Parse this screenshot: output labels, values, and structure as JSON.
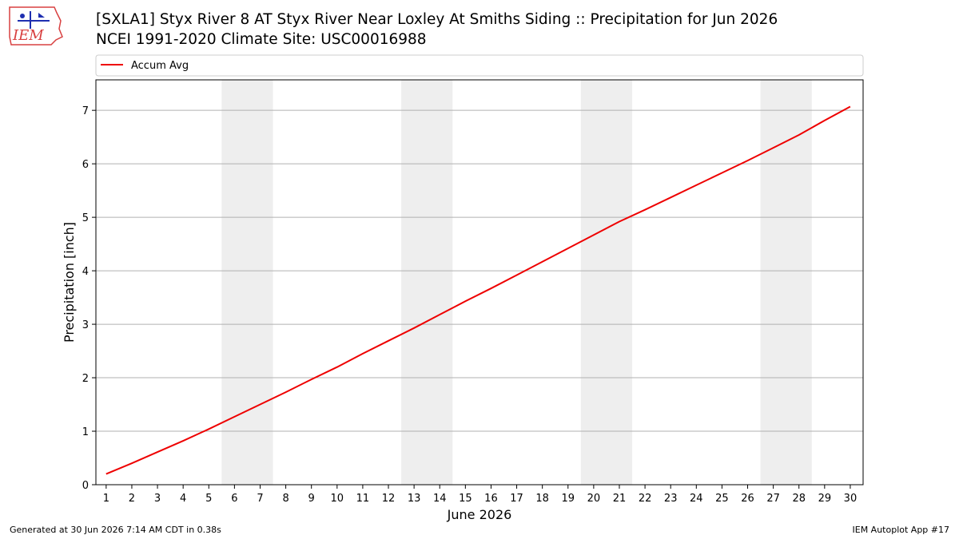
{
  "header": {
    "logo_text": "IEM",
    "title_line1": "[SXLA1] Styx River 8 AT Styx River Near Loxley  At Smiths Siding :: Precipitation for Jun 2026",
    "title_line2": "NCEI 1991-2020 Climate Site: USC00016988"
  },
  "footer": {
    "generated": "Generated at 30 Jun 2026 7:14 AM CDT in 0.38s",
    "app": "IEM Autoplot App #17"
  },
  "chart_data": {
    "type": "line",
    "title": "[SXLA1] Styx River 8 AT Styx River Near Loxley  At Smiths Siding :: Precipitation for Jun 2026",
    "subtitle": "NCEI 1991-2020 Climate Site: USC00016988",
    "xlabel": "June 2026",
    "ylabel": "Precipitation [inch]",
    "x": [
      1,
      2,
      3,
      4,
      5,
      6,
      7,
      8,
      9,
      10,
      11,
      12,
      13,
      14,
      15,
      16,
      17,
      18,
      19,
      20,
      21,
      22,
      23,
      24,
      25,
      26,
      27,
      28,
      29,
      30
    ],
    "xlim": [
      0.6,
      30.5
    ],
    "ylim": [
      0,
      7.57
    ],
    "yticks": [
      0,
      1,
      2,
      3,
      4,
      5,
      6,
      7
    ],
    "grid": "horizontal",
    "legend_position": "top",
    "weekend_shading": [
      [
        5.5,
        7.5
      ],
      [
        12.5,
        14.5
      ],
      [
        19.5,
        21.5
      ],
      [
        26.5,
        28.5
      ]
    ],
    "shade_color": "#eeeeee",
    "series": [
      {
        "name": "Accum Avg",
        "color": "#ee0000",
        "values": [
          0.2,
          0.4,
          0.61,
          0.82,
          1.04,
          1.27,
          1.5,
          1.73,
          1.97,
          2.2,
          2.45,
          2.69,
          2.93,
          3.18,
          3.43,
          3.67,
          3.92,
          4.17,
          4.42,
          4.67,
          4.92,
          5.14,
          5.37,
          5.6,
          5.83,
          6.06,
          6.3,
          6.54,
          6.81,
          7.07
        ]
      }
    ]
  }
}
